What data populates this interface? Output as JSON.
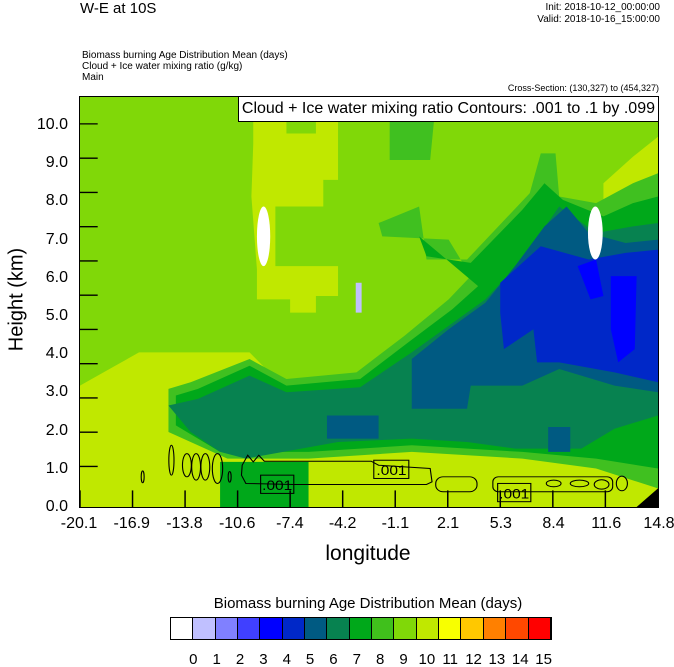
{
  "header": {
    "title": "W-E at 10S",
    "init": "Init: 2018-10-12_00:00:00",
    "valid": "Valid: 2018-10-16_15:00:00",
    "fields": [
      "Biomass burning Age Distribution Mean   (days)",
      "Cloud + Ice water mixing ratio   (g/kg)",
      "Main"
    ],
    "cross_section": "Cross-Section: (130,327) to (454,327)"
  },
  "contour_legend": "Cloud + Ice water mixing ratio Contours: .001 to .1 by .099",
  "contour_labels": [
    ".001",
    ".001",
    ".001"
  ],
  "chart_data": {
    "type": "heatmap",
    "title": "W-E at 10S",
    "xlabel": "longitude",
    "ylabel": "Height (km)",
    "xlim": [
      -20.1,
      14.8
    ],
    "ylim": [
      0,
      10.8
    ],
    "x_ticks": [
      "-20.1",
      "-16.9",
      "-13.8",
      "-10.6",
      "-7.4",
      "-4.2",
      "-1.1",
      "2.1",
      "5.3",
      "8.4",
      "11.6",
      "14.8"
    ],
    "y_ticks": [
      "0.0",
      "1.0",
      "2.0",
      "3.0",
      "4.0",
      "5.0",
      "6.0",
      "7.0",
      "8.0",
      "9.0",
      "10.0"
    ],
    "colorbar": {
      "title": "Biomass burning Age Distribution Mean  (days)",
      "labels": [
        "0",
        "1",
        "2",
        "3",
        "4",
        "5",
        "6",
        "7",
        "8",
        "9",
        "10",
        "11",
        "12",
        "13",
        "14",
        "15"
      ],
      "colors": [
        "#FFFFFF",
        "#C0C0FF",
        "#8080FF",
        "#4040FF",
        "#0000FF",
        "#0028C8",
        "#005A82",
        "#078250",
        "#00A81A",
        "#40C01C",
        "#80D808",
        "#C0E800",
        "#F8FF00",
        "#FFC800",
        "#FF8000",
        "#FF4800",
        "#FF0000"
      ]
    },
    "contours": {
      "variable": "Cloud + Ice water mixing ratio",
      "min": 0.001,
      "max": 0.1,
      "interval": 0.099
    }
  }
}
